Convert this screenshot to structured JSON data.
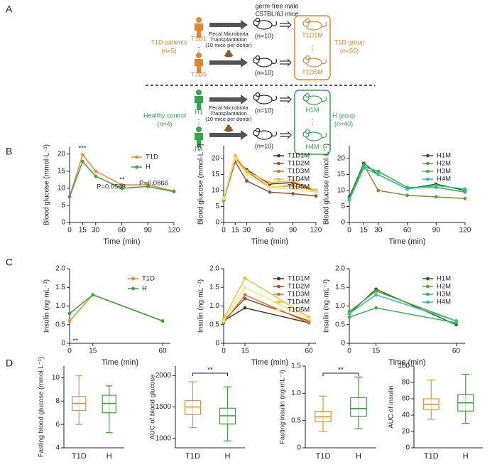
{
  "panel_labels": [
    "A",
    "B",
    "C",
    "D"
  ],
  "diagram": {
    "header": [
      "germ-free male",
      "C57BL/6J mice"
    ],
    "fmt": [
      "Fecal Microbiota",
      "Transplantation",
      "(10 mice per donor)"
    ],
    "n_mice": "(n=10)",
    "t1d": {
      "label": "T1D patients",
      "n": "(n=5)",
      "donors": [
        "T1D1",
        "T1D5"
      ],
      "mice": [
        "T1D1M",
        "T1D5M"
      ],
      "group": "T1D group",
      "group_n": "(n=50)"
    },
    "healthy": {
      "label": "Healthy control",
      "n": "(n=4)",
      "donors": [
        "H1",
        "H4"
      ],
      "mice": [
        "H1M",
        "H4M"
      ],
      "group": "H group",
      "group_n": "(n=40)"
    }
  },
  "chart_data": [
    {
      "type": "line",
      "xlabel": "Time (min)",
      "ylabel": "Blood glucose (mmol·L⁻¹)",
      "x": [
        0,
        15,
        30,
        60,
        90,
        120
      ],
      "xlim": [
        0,
        120
      ],
      "xticks": [
        0,
        15,
        30,
        60,
        90,
        120
      ],
      "ylim": [
        0,
        22
      ],
      "yticks": [
        0,
        5,
        10,
        15,
        20
      ],
      "series": [
        {
          "name": "T1D",
          "color": "#f08a30",
          "values": [
            7.5,
            19.8,
            15,
            11,
            11,
            9.2
          ]
        },
        {
          "name": "H",
          "color": "#3aa63a",
          "values": [
            7.5,
            17.8,
            13.5,
            10,
            10.5,
            9
          ]
        }
      ],
      "annotations": [
        "***",
        "P=0.0589",
        "**",
        "P=0.0866"
      ]
    },
    {
      "type": "line",
      "xlabel": "Time (min)",
      "ylabel": "Blood glucose (mmol·L⁻¹)",
      "x": [
        0,
        15,
        30,
        60,
        90,
        120
      ],
      "xlim": [
        0,
        120
      ],
      "xticks": [
        0,
        15,
        30,
        60,
        90,
        120
      ],
      "ylim": [
        0,
        24
      ],
      "yticks": [
        0,
        5,
        10,
        15,
        20
      ],
      "series": [
        {
          "name": "T1D1M",
          "color": "#5a3214",
          "values": [
            7,
            20,
            16.5,
            12,
            12.5,
            10
          ]
        },
        {
          "name": "T1D2M",
          "color": "#a0522d",
          "values": [
            7,
            19,
            13,
            9.5,
            9,
            8.3
          ]
        },
        {
          "name": "T1D3M",
          "color": "#d2782a",
          "values": [
            7,
            20,
            16,
            11,
            11.5,
            10
          ]
        },
        {
          "name": "T1D4M",
          "color": "#f2c230",
          "values": [
            7.5,
            21,
            16,
            12.5,
            13,
            10
          ]
        },
        {
          "name": "T1D5M",
          "color": "#f8e27a",
          "values": [
            7.5,
            20,
            15,
            11,
            10.5,
            9.5
          ]
        }
      ]
    },
    {
      "type": "line",
      "xlabel": "Time (min)",
      "ylabel": "Blood glucose (mmol·L⁻¹)",
      "x": [
        0,
        15,
        30,
        60,
        90,
        120
      ],
      "xlim": [
        0,
        120
      ],
      "xticks": [
        0,
        15,
        30,
        60,
        90,
        120
      ],
      "ylim": [
        0,
        24
      ],
      "yticks": [
        0,
        5,
        10,
        15,
        20
      ],
      "series": [
        {
          "name": "H1M",
          "color": "#1a6e1a",
          "values": [
            8,
            18.5,
            15,
            10.5,
            12,
            10
          ]
        },
        {
          "name": "H2M",
          "color": "#6a9e2a",
          "values": [
            7.5,
            18,
            10,
            8.5,
            8,
            7.5
          ]
        },
        {
          "name": "H3M",
          "color": "#3cb54a",
          "values": [
            7,
            17.5,
            16,
            11,
            11,
            9.5
          ]
        },
        {
          "name": "H4M",
          "color": "#2ec4a0",
          "values": [
            7,
            17,
            15,
            10.5,
            11.5,
            10.5
          ]
        }
      ]
    },
    {
      "type": "line",
      "xlabel": "Time (min)",
      "ylabel": "Insulin (ng·mL⁻¹)",
      "x": [
        0,
        15,
        60
      ],
      "xlim": [
        0,
        65
      ],
      "xticks": [
        0,
        15,
        60
      ],
      "ylim": [
        0,
        2
      ],
      "yticks": [
        0,
        0.5,
        {
          "value": 1,
          "label": "1.0"
        },
        1.5,
        {
          "value": 2,
          "label": "2.0"
        }
      ],
      "series": [
        {
          "name": "T1D",
          "color": "#f08a30",
          "values": [
            0.6,
            1.3,
            0.6
          ]
        },
        {
          "name": "H",
          "color": "#3aa63a",
          "values": [
            0.8,
            1.3,
            0.6
          ]
        }
      ],
      "annotations": [
        "**"
      ]
    },
    {
      "type": "line",
      "xlabel": "Time (min)",
      "ylabel": "Insulin (ng·mL⁻¹)",
      "x": [
        0,
        15,
        60
      ],
      "xlim": [
        0,
        65
      ],
      "xticks": [
        0,
        15,
        60
      ],
      "ylim": [
        0,
        2
      ],
      "yticks": [
        0,
        0.5,
        {
          "value": 1,
          "label": "1.0"
        },
        1.5,
        {
          "value": 2,
          "label": "2.0"
        }
      ],
      "series": [
        {
          "name": "T1D1M",
          "color": "#5a3214",
          "values": [
            0.6,
            0.95,
            0.55
          ]
        },
        {
          "name": "T1D2M",
          "color": "#a0522d",
          "values": [
            0.6,
            1.2,
            0.6
          ]
        },
        {
          "name": "T1D3M",
          "color": "#d2782a",
          "values": [
            0.55,
            1.3,
            0.55
          ]
        },
        {
          "name": "T1D4M",
          "color": "#f2c230",
          "values": [
            0.65,
            1.75,
            0.7
          ]
        },
        {
          "name": "T1D5M",
          "color": "#f8e27a",
          "values": [
            0.6,
            1.5,
            0.65
          ]
        }
      ]
    },
    {
      "type": "line",
      "xlabel": "Time (min)",
      "ylabel": "Insulin (ng·mL⁻¹)",
      "x": [
        0,
        15,
        60
      ],
      "xlim": [
        0,
        65
      ],
      "xticks": [
        0,
        15,
        60
      ],
      "ylim": [
        0,
        2
      ],
      "yticks": [
        0,
        0.5,
        {
          "value": 1,
          "label": "1.0"
        },
        1.5,
        {
          "value": 2,
          "label": "2.0"
        }
      ],
      "series": [
        {
          "name": "H1M",
          "color": "#1a6e1a",
          "values": [
            0.8,
            1.45,
            0.5
          ]
        },
        {
          "name": "H2M",
          "color": "#6a9e2a",
          "values": [
            0.85,
            1.4,
            0.6
          ]
        },
        {
          "name": "H3M",
          "color": "#3cb54a",
          "values": [
            0.7,
            0.95,
            0.55
          ]
        },
        {
          "name": "H4M",
          "color": "#2ec4a0",
          "values": [
            0.8,
            1.3,
            0.6
          ]
        }
      ]
    },
    {
      "type": "box",
      "ylabel": "Fasting blood glucose (mmol·L⁻¹)",
      "categories": [
        "T1D",
        "H"
      ],
      "colors": [
        "#e8922e",
        "#3aa63a"
      ],
      "ylim": [
        4,
        11
      ],
      "yticks": [
        4,
        6,
        8,
        10
      ],
      "stats": [
        [
          6,
          7.2,
          7.8,
          8.4,
          10.2
        ],
        [
          5.3,
          7,
          7.8,
          8.5,
          9.3
        ]
      ]
    },
    {
      "type": "box",
      "ylabel": "AUC of blood glucose",
      "categories": [
        "T1D",
        "H"
      ],
      "colors": [
        "#e8922e",
        "#3aa63a"
      ],
      "ylim": [
        850,
        2150
      ],
      "yticks": [
        1000,
        1500,
        2000
      ],
      "stats": [
        [
          1170,
          1380,
          1500,
          1600,
          1900
        ],
        [
          960,
          1230,
          1360,
          1480,
          1820
        ]
      ],
      "sig": "**"
    },
    {
      "type": "box",
      "ylabel": "Fasting insulin (ng·mL⁻¹)",
      "categories": [
        "T1D",
        "H"
      ],
      "colors": [
        "#e8922e",
        "#3aa63a"
      ],
      "ylim": [
        0,
        1.5
      ],
      "yticks": [
        0,
        0.5,
        {
          "value": 1,
          "label": "1.0"
        },
        1.5
      ],
      "stats": [
        [
          0.3,
          0.48,
          0.57,
          0.67,
          0.95
        ],
        [
          0.35,
          0.58,
          0.72,
          0.92,
          1.3
        ]
      ],
      "sig": "**"
    },
    {
      "type": "box",
      "ylabel": "AUC of insulin",
      "categories": [
        "T1D",
        "H"
      ],
      "colors": [
        "#e8922e",
        "#3aa63a"
      ],
      "ylim": [
        0,
        100
      ],
      "yticks": [
        0,
        20,
        40,
        60,
        80,
        100
      ],
      "stats": [
        [
          35,
          47,
          53,
          60,
          83
        ],
        [
          30,
          45,
          55,
          65,
          90
        ]
      ]
    }
  ]
}
